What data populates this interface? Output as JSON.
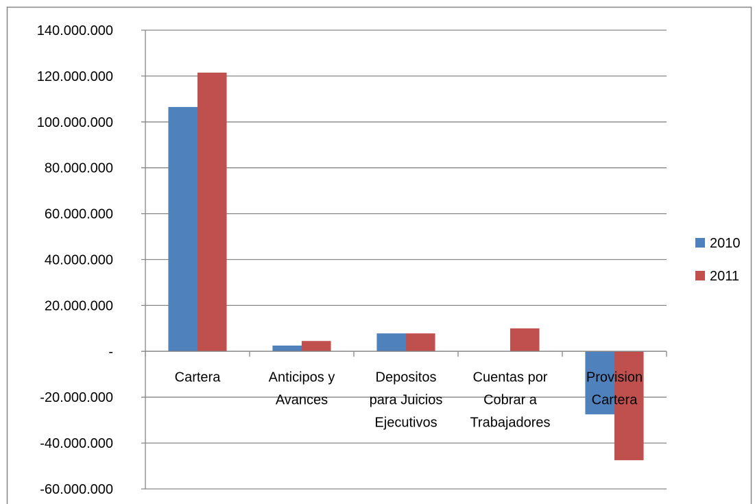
{
  "chart_data": {
    "type": "bar",
    "categories": [
      [
        "Cartera"
      ],
      [
        "Anticipos y",
        "Avances"
      ],
      [
        "Depositos",
        "para Juicios",
        "Ejecutivos"
      ],
      [
        "Cuentas por",
        "Cobrar a",
        "Trabajadores"
      ],
      [
        "Provision",
        "Cartera"
      ]
    ],
    "series": [
      {
        "name": "2010",
        "color": "#4F81BD",
        "values": [
          106500000,
          2500000,
          7800000,
          0,
          -27500000
        ]
      },
      {
        "name": "2011",
        "color": "#C0504D",
        "values": [
          121500000,
          4500000,
          7800000,
          10000000,
          -47500000
        ]
      }
    ],
    "ylim": [
      -60000000,
      140000000
    ],
    "yticks": [
      140000000,
      120000000,
      100000000,
      80000000,
      60000000,
      40000000,
      20000000,
      0,
      -20000000,
      -40000000,
      -60000000
    ],
    "ytick_labels": [
      "140.000.000",
      "120.000.000",
      "100.000.000",
      "80.000.000",
      "60.000.000",
      "40.000.000",
      "20.000.000",
      "-",
      "-20.000.000",
      "-40.000.000",
      "-60.000.000"
    ],
    "title": "",
    "xlabel": "",
    "ylabel": "",
    "grid": true,
    "legend_position": "right",
    "gridline_color": "#868686",
    "border_color": "#868686"
  }
}
